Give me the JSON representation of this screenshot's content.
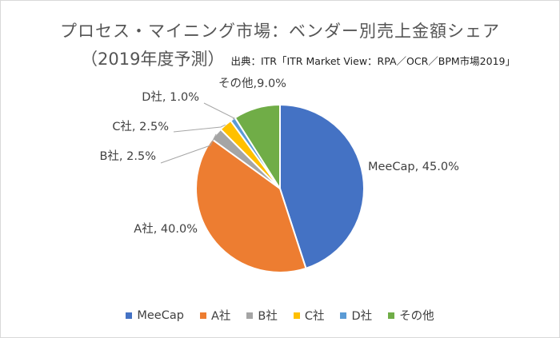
{
  "chart_data": {
    "type": "pie",
    "title": "プロセス・マイニング市場：ベンダー別売上金額シェア",
    "subtitle": "（2019年度予測）",
    "source": "出典：ITR「ITR Market View：RPA／OCR／BPM市場2019」",
    "categories": [
      "MeeCap",
      "A社",
      "B社",
      "C社",
      "D社",
      "その他"
    ],
    "values": [
      45.0,
      40.0,
      2.5,
      2.5,
      1.0,
      9.0
    ],
    "data_labels": [
      "MeeCap, 45.0%",
      "A社, 40.0%",
      "B社, 2.5%",
      "C社, 2.5%",
      "D社, 1.0%",
      "その他,9.0%"
    ],
    "colors": [
      "#4472C4",
      "#ED7D31",
      "#A5A5A5",
      "#FFC000",
      "#5B9BD5",
      "#70AD47"
    ],
    "legend_position": "bottom",
    "start_angle": "12 o'clock, clockwise"
  }
}
